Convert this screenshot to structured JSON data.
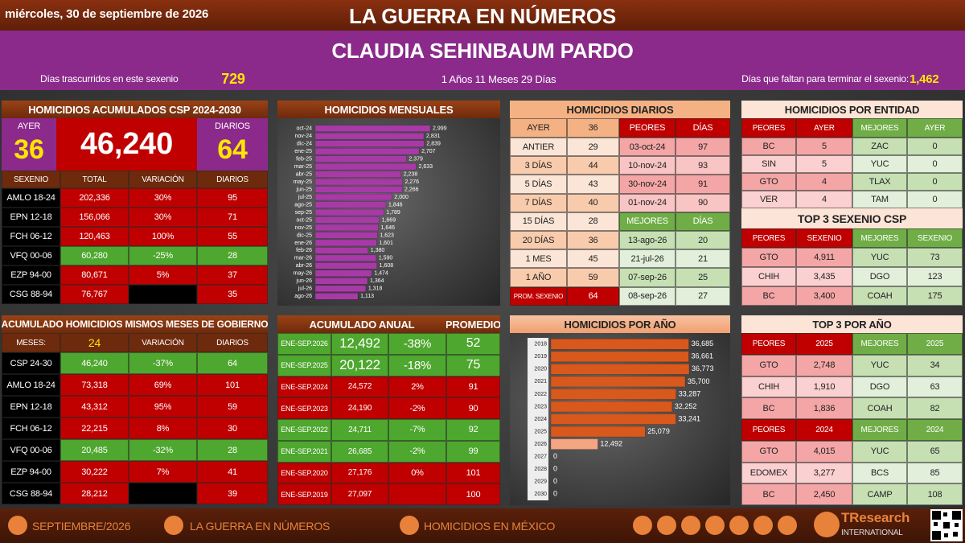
{
  "header": {
    "date": "miércoles, 30 de septiembre de 2026",
    "title": "LA GUERRA EN NÚMEROS",
    "name": "CLAUDIA SEHINBAUM PARDO",
    "days_elapsed_label": "Días trascurridos en este sexenio",
    "days_elapsed": "729",
    "duration": "1 Años 11 Meses 29 Días",
    "days_left_label": "Días que faltan para terminar el sexenio:",
    "days_left": "1,462"
  },
  "accumulated": {
    "title": "HOMICIDIOS ACUMULADOS CSP 2024-2030",
    "yesterday_label": "AYER",
    "yesterday": "36",
    "total": "46,240",
    "daily_label": "DIARIOS",
    "daily": "64",
    "columns": [
      "SEXENIO",
      "TOTAL",
      "VARIACIÓN",
      "DIARIOS"
    ],
    "rows": [
      [
        "AMLO 18-24",
        "202,336",
        "30%",
        "95"
      ],
      [
        "EPN 12-18",
        "156,066",
        "30%",
        "71"
      ],
      [
        "FCH 06-12",
        "120,463",
        "100%",
        "55"
      ],
      [
        "VFQ 00-06",
        "60,280",
        "-25%",
        "28"
      ],
      [
        "EZP 94-00",
        "80,671",
        "5%",
        "37"
      ],
      [
        "CSG 88-94",
        "76,767",
        null,
        "35"
      ]
    ],
    "row_colors": [
      "#c00000",
      "#c00000",
      "#c00000",
      "#4ea72e",
      "#c00000",
      "#c00000"
    ]
  },
  "same_months": {
    "title": "ACUMULADO HOMICIDIOS MISMOS MESES DE GOBIERNO",
    "columns": [
      "MESES:",
      "24",
      "VARIACIÓN",
      "DIARIOS"
    ],
    "rows": [
      [
        "CSP 24-30",
        "46,240",
        "-37%",
        "64"
      ],
      [
        "AMLO 18-24",
        "73,318",
        "69%",
        "101"
      ],
      [
        "EPN 12-18",
        "43,312",
        "95%",
        "59"
      ],
      [
        "FCH 06-12",
        "22,215",
        "8%",
        "30"
      ],
      [
        "VFQ 00-06",
        "20,485",
        "-32%",
        "28"
      ],
      [
        "EZP 94-00",
        "30,222",
        "7%",
        "41"
      ],
      [
        "CSG 88-94",
        "28,212",
        null,
        "39"
      ]
    ],
    "row_colors": [
      "#4ea72e",
      "#c00000",
      "#c00000",
      "#c00000",
      "#4ea72e",
      "#c00000",
      "#c00000"
    ]
  },
  "daily": {
    "title": "HOMICIDIOS DIARIOS",
    "columns": [
      "AYER",
      "36",
      "PEORES",
      "DÍAS"
    ],
    "rows": [
      [
        "ANTIER",
        "29"
      ],
      [
        "3 DÍAS",
        "44"
      ],
      [
        "5 DÍAS",
        "43"
      ],
      [
        "7 DÍAS",
        "40"
      ],
      [
        "15 DÍAS",
        "28"
      ],
      [
        "20 DÍAS",
        "36"
      ],
      [
        "1 MES",
        "45"
      ],
      [
        "1 AÑO",
        "59"
      ],
      [
        "PROM. SEXENIO",
        "64"
      ]
    ],
    "worst": [
      [
        "03-oct-24",
        "97"
      ],
      [
        "10-nov-24",
        "93"
      ],
      [
        "30-nov-24",
        "91"
      ],
      [
        "01-nov-24",
        "90"
      ]
    ],
    "best_header": [
      "MEJORES",
      "DÍAS"
    ],
    "best": [
      [
        "13-ago-26",
        "20"
      ],
      [
        "21-jul-26",
        "21"
      ],
      [
        "07-sep-26",
        "25"
      ],
      [
        "08-sep-26",
        "27"
      ]
    ]
  },
  "by_state": {
    "title": "HOMICIDIOS POR ENTIDAD",
    "columns": [
      "PEORES",
      "AYER",
      "MEJORES",
      "AYER"
    ],
    "rows": [
      [
        "BC",
        "5",
        "ZAC",
        "0"
      ],
      [
        "SIN",
        "5",
        "YUC",
        "0"
      ],
      [
        "GTO",
        "4",
        "TLAX",
        "0"
      ],
      [
        "VER",
        "4",
        "TAM",
        "0"
      ]
    ],
    "top_title": "TOP 3 SEXENIO CSP",
    "top_columns": [
      "PEORES",
      "SEXENIO",
      "MEJORES",
      "SEXENIO"
    ],
    "top_rows": [
      [
        "GTO",
        "4,911",
        "YUC",
        "73"
      ],
      [
        "CHIH",
        "3,435",
        "DGO",
        "123"
      ],
      [
        "BC",
        "3,400",
        "COAH",
        "175"
      ]
    ]
  },
  "annual": {
    "title": "ACUMULADO ANUAL",
    "average_label": "PROMEDIO",
    "rows": [
      [
        "ENE-SEP.2026",
        "12,492",
        "-38%",
        "52"
      ],
      [
        "ENE-SEP.2025",
        "20,122",
        "-18%",
        "75"
      ],
      [
        "ENE-SEP.2024",
        "24,572",
        "2%",
        "91"
      ],
      [
        "ENE-SEP.2023",
        "24,190",
        "-2%",
        "90"
      ],
      [
        "ENE-SEP.2022",
        "24,711",
        "-7%",
        "92"
      ],
      [
        "ENE-SEP.2021",
        "26,685",
        "-2%",
        "99"
      ],
      [
        "ENE-SEP.2020",
        "27,176",
        "0%",
        "101"
      ],
      [
        "ENE-SEP.2019",
        "27,097",
        null,
        "100"
      ]
    ],
    "row_colors": [
      "#4ea72e",
      "#4ea72e",
      "#c00000",
      "#c00000",
      "#4ea72e",
      "#4ea72e",
      "#c00000",
      "#c00000"
    ]
  },
  "top_by_year": {
    "title": "TOP 3 POR AÑO",
    "groups": [
      {
        "columns": [
          "PEORES",
          "2025",
          "MEJORES",
          "2025"
        ],
        "rows": [
          [
            "GTO",
            "2,748",
            "YUC",
            "34"
          ],
          [
            "CHIH",
            "1,910",
            "DGO",
            "63"
          ],
          [
            "BC",
            "1,836",
            "COAH",
            "82"
          ]
        ]
      },
      {
        "columns": [
          "PEORES",
          "2024",
          "MEJORES",
          "2024"
        ],
        "rows": [
          [
            "GTO",
            "4,015",
            "YUC",
            "65"
          ],
          [
            "EDOMEX",
            "3,277",
            "BCS",
            "85"
          ],
          [
            "BC",
            "2,450",
            "CAMP",
            "108"
          ]
        ]
      }
    ]
  },
  "chart_data": [
    {
      "type": "bar",
      "orientation": "horizontal",
      "title": "HOMICIDIOS MENSUALES",
      "categories": [
        "oct-24",
        "nov-24",
        "dic-24",
        "ene-25",
        "feb-25",
        "mar-25",
        "abr-25",
        "may-25",
        "jun-25",
        "jul-25",
        "ago-25",
        "sep-25",
        "oct-25",
        "nov-25",
        "dic-25",
        "ene-26",
        "feb-26",
        "mar-26",
        "abr-26",
        "may-26",
        "jun-26",
        "jul-26",
        "ago-26"
      ],
      "values": [
        2999,
        2831,
        2839,
        2707,
        2379,
        2633,
        2238,
        2276,
        2266,
        2000,
        1846,
        1789,
        1669,
        1646,
        1623,
        1601,
        1380,
        1590,
        1608,
        1474,
        1364,
        1318,
        1113
      ],
      "value_labels": [
        "2,999",
        "2,831",
        "2,839",
        "2,707",
        "2,379",
        "2,633",
        "2,238",
        "2,276",
        "2,266",
        "2,000",
        "1,846",
        "1,789",
        "1,669",
        "1,646",
        "1,623",
        "1,601",
        "1,380",
        "1,590",
        "1,608",
        "1,474",
        "1,364",
        "1,318",
        "1,113"
      ],
      "color": "#a83aa8"
    },
    {
      "type": "bar",
      "orientation": "horizontal",
      "title": "HOMICIDIOS POR AÑO",
      "categories": [
        "2018",
        "2019",
        "2020",
        "2021",
        "2022",
        "2023",
        "2024",
        "2025",
        "2026",
        "2027",
        "2028",
        "2029",
        "2030"
      ],
      "values": [
        36685,
        36661,
        36773,
        35700,
        33287,
        32252,
        33241,
        25079,
        12492,
        0,
        0,
        0,
        0
      ],
      "value_labels": [
        "36,685",
        "36,661",
        "36,773",
        "35,700",
        "33,287",
        "32,252",
        "33,241",
        "25,079",
        "12,492",
        "0",
        "0",
        "0",
        "0"
      ],
      "colors": [
        "#d9581c",
        "#d9581c",
        "#d9581c",
        "#d9581c",
        "#d9581c",
        "#d9581c",
        "#d9581c",
        "#d9581c",
        "#f4a582",
        "#d9581c",
        "#d9581c",
        "#d9581c",
        "#d9581c"
      ]
    }
  ],
  "footer": {
    "month": "SEPTIEMBRE/2026",
    "brand": "LA GUERRA EN NÚMEROS",
    "topic": "HOMICIDIOS EN MÉXICO",
    "logo": "TResearch",
    "logo_sub": "INTERNATIONAL"
  }
}
